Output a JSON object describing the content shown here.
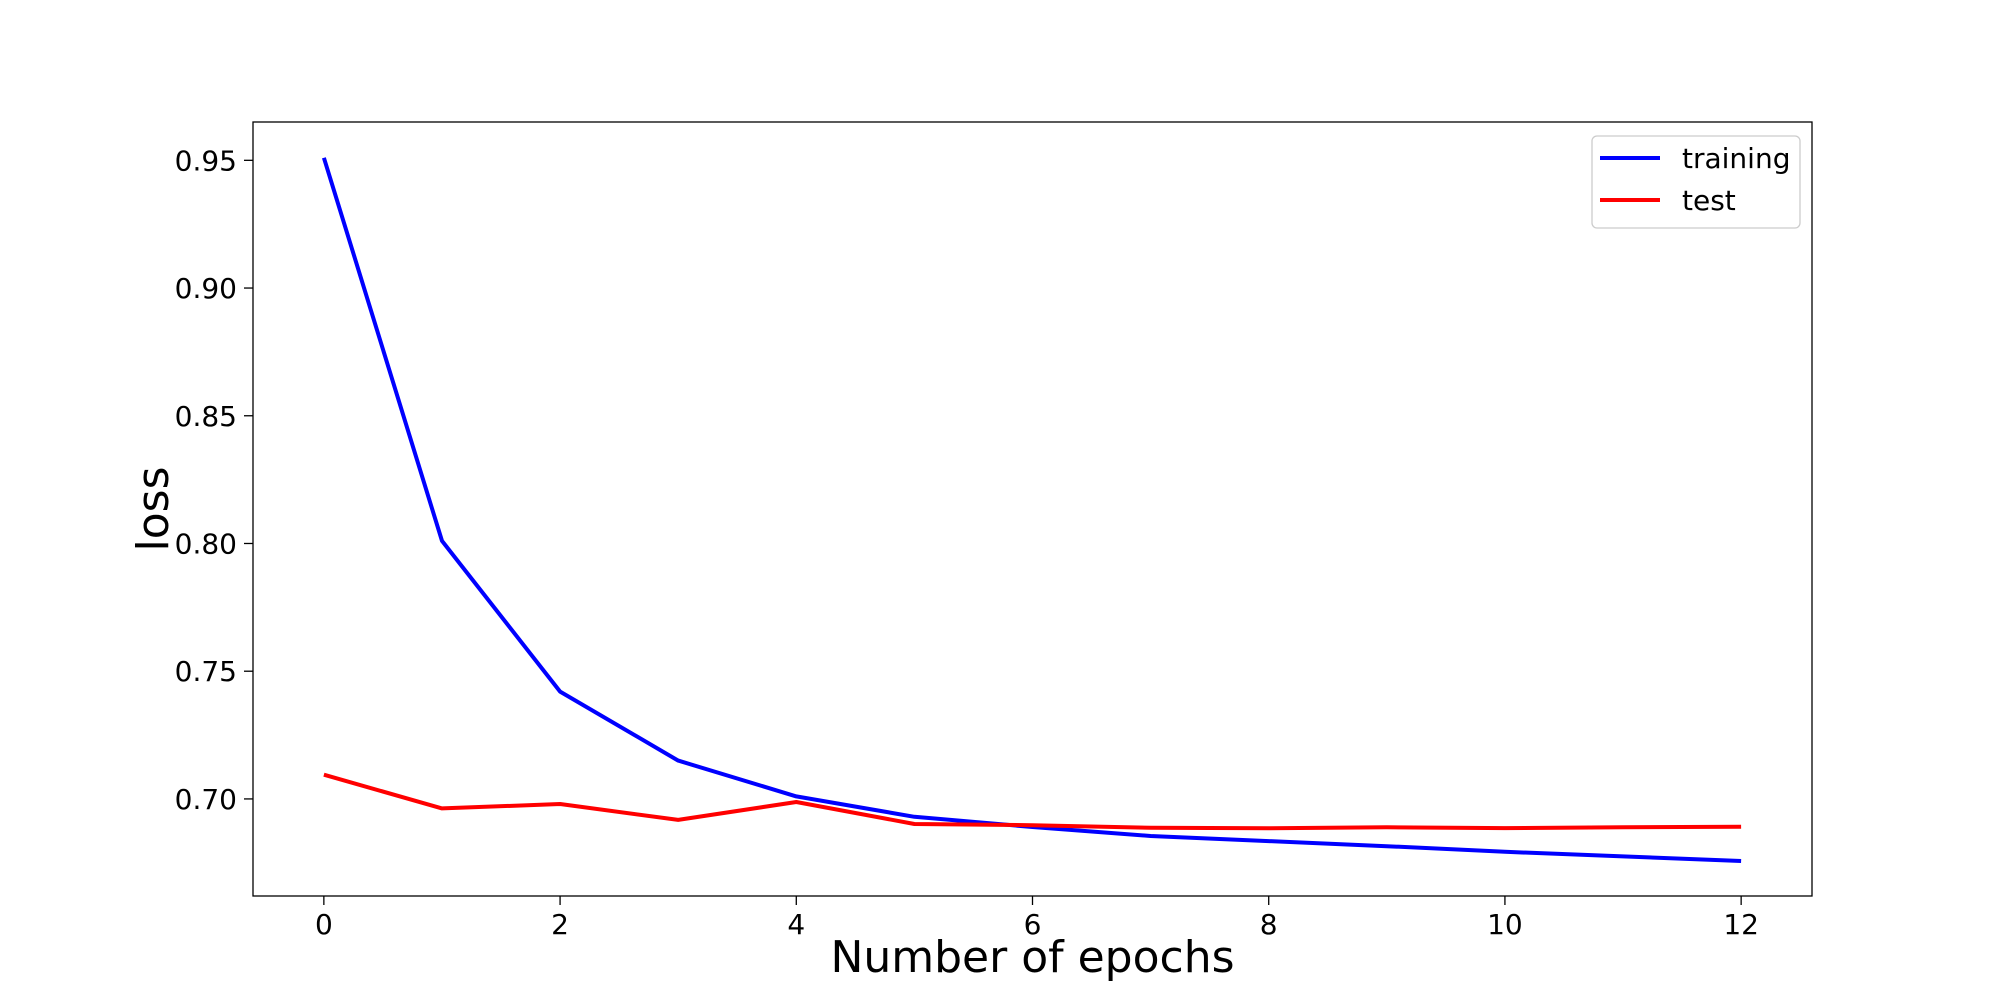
{
  "chart_data": {
    "type": "line",
    "title": "",
    "xlabel": "Number of epochs",
    "ylabel": "loss",
    "xlim": [
      -0.6,
      12.6
    ],
    "ylim": [
      0.662,
      0.965
    ],
    "xticks": [
      0,
      2,
      4,
      6,
      8,
      10,
      12
    ],
    "xtick_labels": [
      "0",
      "2",
      "4",
      "6",
      "8",
      "10",
      "12"
    ],
    "yticks": [
      0.7,
      0.75,
      0.8,
      0.85,
      0.9,
      0.95
    ],
    "ytick_labels": [
      "0.70",
      "0.75",
      "0.80",
      "0.85",
      "0.90",
      "0.95"
    ],
    "grid": false,
    "legend_position": "top-right",
    "x": [
      0,
      1,
      2,
      3,
      4,
      5,
      6,
      7,
      8,
      9,
      10,
      11,
      12
    ],
    "series": [
      {
        "name": "training",
        "color": "#0000ff",
        "values": [
          0.951,
          0.801,
          0.742,
          0.715,
          0.701,
          0.693,
          0.689,
          0.6855,
          0.6835,
          0.6815,
          0.6793,
          0.6775,
          0.6757
        ]
      },
      {
        "name": "test",
        "color": "#ff0000",
        "values": [
          0.7095,
          0.6963,
          0.698,
          0.6918,
          0.6988,
          0.6902,
          0.6897,
          0.6887,
          0.6885,
          0.6889,
          0.6886,
          0.6889,
          0.6891
        ]
      }
    ]
  }
}
